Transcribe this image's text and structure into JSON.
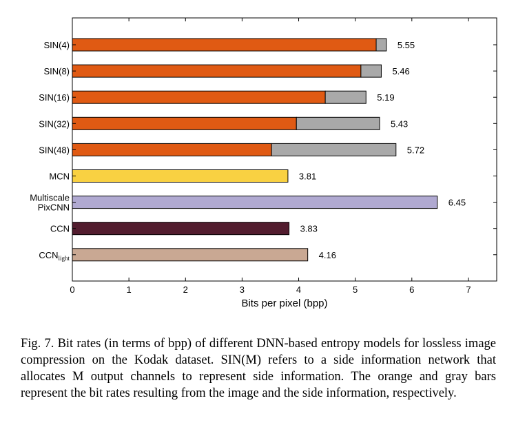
{
  "chart_data": {
    "type": "bar",
    "orientation": "horizontal",
    "stacked": true,
    "xlabel": "Bits per pixel (bpp)",
    "xlim": [
      0,
      7.5
    ],
    "xticks": [
      0,
      1,
      2,
      3,
      4,
      5,
      6,
      7
    ],
    "grid": false,
    "bars": [
      {
        "label": "SIN(4)",
        "segments": [
          {
            "name": "image",
            "value": 5.37,
            "color": "#e05a13"
          },
          {
            "name": "side information",
            "value": 0.18,
            "color": "#a9a9a9"
          }
        ],
        "total_label": "5.55"
      },
      {
        "label": "SIN(8)",
        "segments": [
          {
            "name": "image",
            "value": 5.1,
            "color": "#e05a13"
          },
          {
            "name": "side information",
            "value": 0.36,
            "color": "#a9a9a9"
          }
        ],
        "total_label": "5.46"
      },
      {
        "label": "SIN(16)",
        "segments": [
          {
            "name": "image",
            "value": 4.47,
            "color": "#e05a13"
          },
          {
            "name": "side information",
            "value": 0.72,
            "color": "#a9a9a9"
          }
        ],
        "total_label": "5.19"
      },
      {
        "label": "SIN(32)",
        "segments": [
          {
            "name": "image",
            "value": 3.96,
            "color": "#e05a13"
          },
          {
            "name": "side information",
            "value": 1.47,
            "color": "#a9a9a9"
          }
        ],
        "total_label": "5.43"
      },
      {
        "label": "SIN(48)",
        "segments": [
          {
            "name": "image",
            "value": 3.52,
            "color": "#e05a13"
          },
          {
            "name": "side information",
            "value": 2.2,
            "color": "#a9a9a9"
          }
        ],
        "total_label": "5.72"
      },
      {
        "label": "MCN",
        "segments": [
          {
            "name": "total",
            "value": 3.81,
            "color": "#f9d142"
          }
        ],
        "total_label": "3.81"
      },
      {
        "label": "Multiscale PixCNN",
        "segments": [
          {
            "name": "total",
            "value": 6.45,
            "color": "#b0a9d1"
          }
        ],
        "total_label": "6.45"
      },
      {
        "label": "CCN",
        "segments": [
          {
            "name": "total",
            "value": 3.83,
            "color": "#521c2e"
          }
        ],
        "total_label": "3.83"
      },
      {
        "label": "CCN",
        "label_sub": "light",
        "segments": [
          {
            "name": "total",
            "value": 4.16,
            "color": "#c9a893"
          }
        ],
        "total_label": "4.16"
      }
    ]
  },
  "caption": "Fig. 7.  Bit rates (in terms of bpp) of different DNN-based entropy models for lossless image compression on the Kodak dataset. SIN(M) refers to a side information network that allocates M output channels to represent side information. The orange and gray bars represent the bit rates resulting from the image and the side information, respectively."
}
